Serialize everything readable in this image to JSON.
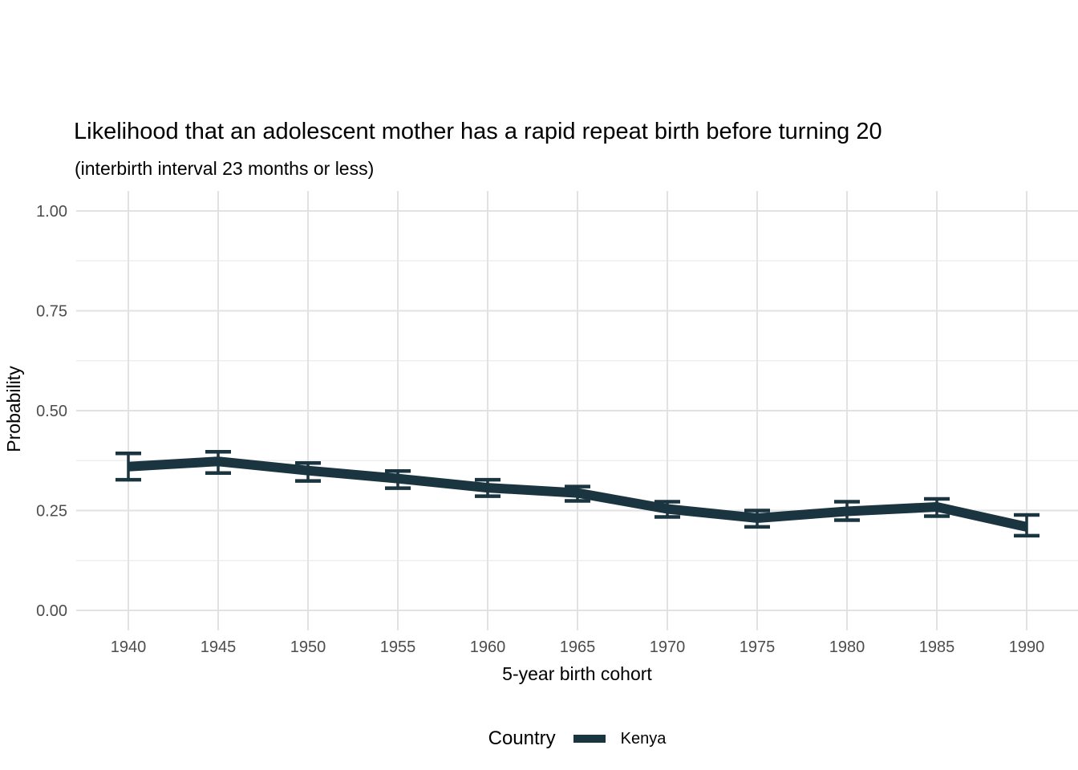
{
  "chart_data": {
    "type": "line",
    "title": "Likelihood that an adolescent mother has a rapid repeat birth before turning 20",
    "subtitle": "(interbirth interval 23 months or less)",
    "xlabel": "5-year birth cohort",
    "ylabel": "Probability",
    "x": [
      1940,
      1945,
      1950,
      1955,
      1960,
      1965,
      1970,
      1975,
      1980,
      1985,
      1990
    ],
    "x_tick_labels": [
      "1940",
      "1945",
      "1950",
      "1955",
      "1960",
      "1965",
      "1970",
      "1975",
      "1980",
      "1985",
      "1990"
    ],
    "series": [
      {
        "name": "Kenya",
        "color": "#1a3540",
        "values": [
          0.36,
          0.373,
          0.35,
          0.33,
          0.307,
          0.294,
          0.254,
          0.231,
          0.248,
          0.259,
          0.209
        ],
        "ci_lower": [
          0.327,
          0.344,
          0.324,
          0.306,
          0.286,
          0.274,
          0.234,
          0.209,
          0.226,
          0.236,
          0.187
        ],
        "ci_upper": [
          0.393,
          0.397,
          0.369,
          0.349,
          0.327,
          0.31,
          0.272,
          0.25,
          0.272,
          0.279,
          0.239
        ]
      }
    ],
    "error_bars": true,
    "ylim": [
      0,
      1
    ],
    "xlim": [
      1940,
      1990
    ],
    "y_ticks": [
      0,
      0.25,
      0.5,
      0.75,
      1
    ],
    "y_tick_labels": [
      "0.00",
      "0.25",
      "0.50",
      "0.75",
      "1.00"
    ],
    "y_minor_ticks": [
      0.125,
      0.375,
      0.625,
      0.875
    ],
    "grid": "horizontal major+minor, vertical major only, no axis lines, no tick marks",
    "legend_position": "bottom-center",
    "legend": {
      "title": "Country"
    },
    "colors": {
      "line": "#1a3540",
      "grid_major": "#e2e2e2",
      "grid_minor": "#eeeeee",
      "tick_label_text": "#4d4d4d",
      "title_text": "#000000",
      "background": "#ffffff"
    }
  }
}
